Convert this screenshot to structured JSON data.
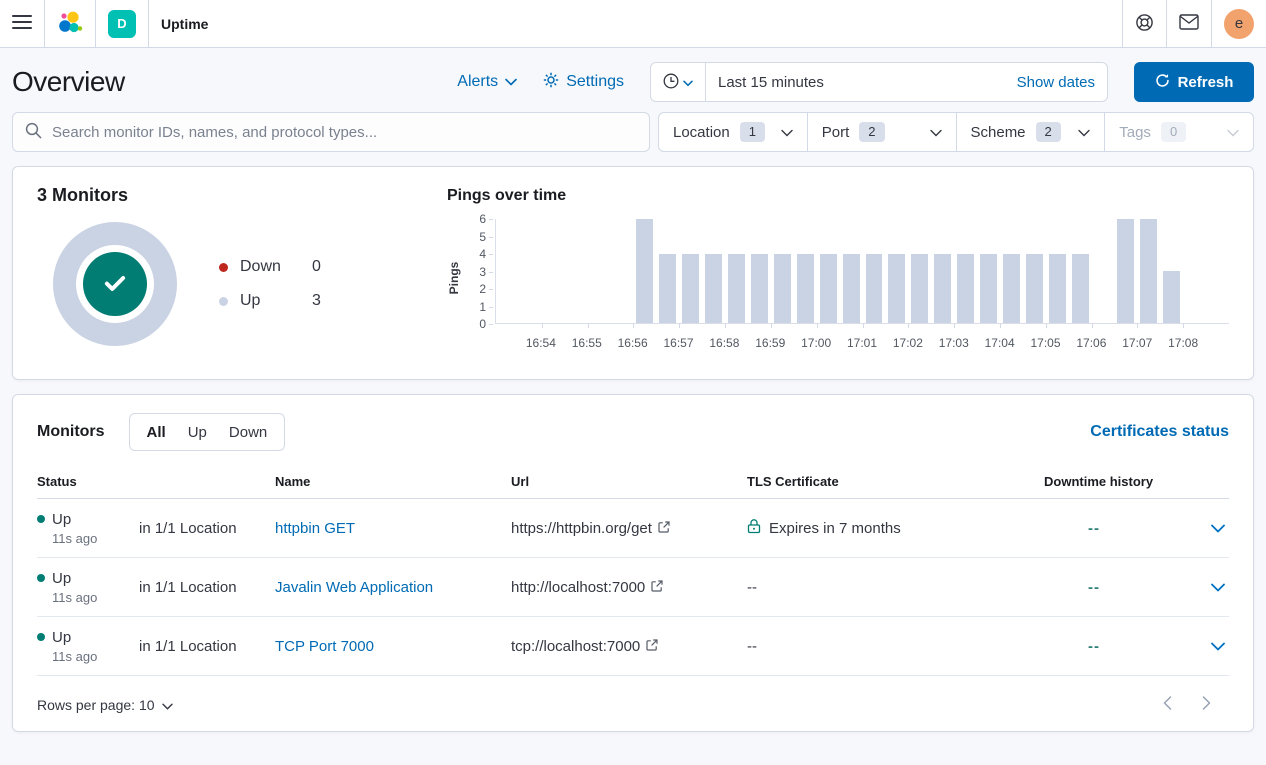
{
  "colors": {
    "primary_blue": "#006bb4",
    "teal_success": "#017d73",
    "danger_red": "#bd271e",
    "bar_fill": "#c9d3e3",
    "space_badge_teal": "#00bfb3",
    "avatar_orange": "#f1a26d"
  },
  "top_bar": {
    "breadcrumb": "Uptime",
    "space_badge": "D",
    "avatar_initial": "e"
  },
  "header": {
    "title": "Overview",
    "alerts_label": "Alerts",
    "settings_label": "Settings",
    "time_range": "Last 15 minutes",
    "show_dates_label": "Show dates",
    "refresh_label": "Refresh"
  },
  "filters": {
    "search_placeholder": "Search monitor IDs, names, and protocol types...",
    "groups": [
      {
        "label": "Location",
        "count": "1",
        "disabled": false
      },
      {
        "label": "Port",
        "count": "2",
        "disabled": false
      },
      {
        "label": "Scheme",
        "count": "2",
        "disabled": false
      },
      {
        "label": "Tags",
        "count": "0",
        "disabled": true
      }
    ]
  },
  "snapshot": {
    "title": "3 Monitors",
    "legend": [
      {
        "label": "Down",
        "value": "0",
        "color": "#bd271e"
      },
      {
        "label": "Up",
        "value": "3",
        "color": "#c9d3e3"
      }
    ]
  },
  "chart_data": {
    "type": "bar",
    "title": "Pings over time",
    "xlabel": "",
    "ylabel": "Pings",
    "ylim": [
      0,
      6
    ],
    "y_ticks": [
      0,
      1,
      2,
      3,
      4,
      5,
      6
    ],
    "x_domain": [
      "16:53:00",
      "17:09:00"
    ],
    "bucket_seconds": 30,
    "x_ticks": [
      "16:54",
      "16:55",
      "16:56",
      "16:57",
      "16:58",
      "16:59",
      "17:00",
      "17:01",
      "17:02",
      "17:03",
      "17:04",
      "17:05",
      "17:06",
      "17:07",
      "17:08"
    ],
    "bar_color": "#c9d3e3",
    "grid": false,
    "buckets": [
      {
        "time": "16:56:00",
        "value": 6
      },
      {
        "time": "16:56:30",
        "value": 4
      },
      {
        "time": "16:57:00",
        "value": 4
      },
      {
        "time": "16:57:30",
        "value": 4
      },
      {
        "time": "16:58:00",
        "value": 4
      },
      {
        "time": "16:58:30",
        "value": 4
      },
      {
        "time": "16:59:00",
        "value": 4
      },
      {
        "time": "16:59:30",
        "value": 4
      },
      {
        "time": "17:00:00",
        "value": 4
      },
      {
        "time": "17:00:30",
        "value": 4
      },
      {
        "time": "17:01:00",
        "value": 4
      },
      {
        "time": "17:01:30",
        "value": 4
      },
      {
        "time": "17:02:00",
        "value": 4
      },
      {
        "time": "17:02:30",
        "value": 4
      },
      {
        "time": "17:03:00",
        "value": 4
      },
      {
        "time": "17:03:30",
        "value": 4
      },
      {
        "time": "17:04:00",
        "value": 4
      },
      {
        "time": "17:04:30",
        "value": 4
      },
      {
        "time": "17:05:00",
        "value": 4
      },
      {
        "time": "17:05:30",
        "value": 4
      },
      {
        "time": "17:06:30",
        "value": 6
      },
      {
        "time": "17:07:00",
        "value": 6
      },
      {
        "time": "17:07:30",
        "value": 3
      }
    ]
  },
  "monitors": {
    "title": "Monitors",
    "tabs": [
      {
        "label": "All",
        "selected": true
      },
      {
        "label": "Up",
        "selected": false
      },
      {
        "label": "Down",
        "selected": false
      }
    ],
    "certificates_link": "Certificates status",
    "columns": [
      "Status",
      "Name",
      "Url",
      "TLS Certificate",
      "Downtime history"
    ],
    "rows": [
      {
        "status": "Up",
        "ago": "11s ago",
        "location": "in 1/1 Location",
        "name": "httpbin GET",
        "url": "https://httpbin.org/get",
        "tls": "Expires in 7 months",
        "downtime": "--"
      },
      {
        "status": "Up",
        "ago": "11s ago",
        "location": "in 1/1 Location",
        "name": "Javalin Web Application",
        "url": "http://localhost:7000",
        "tls": "--",
        "downtime": "--"
      },
      {
        "status": "Up",
        "ago": "11s ago",
        "location": "in 1/1 Location",
        "name": "TCP Port 7000",
        "url": "tcp://localhost:7000",
        "tls": "--",
        "downtime": "--"
      }
    ],
    "rows_per_page_label": "Rows per page: 10"
  }
}
